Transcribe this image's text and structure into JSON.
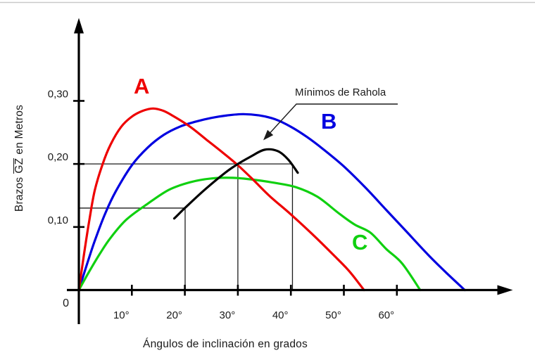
{
  "figure": {
    "background_color": "#ffffff",
    "top_border_color": "#c9c9c9",
    "axis_color": "#000000",
    "text_color": "#1a1a1a",
    "reference_line_color": "#1c1c1c"
  },
  "chart_data": {
    "type": "line",
    "title": "",
    "xlabel": "Ángulos de inclinación en grados",
    "ylabel": "Brazos GZ en Metros",
    "ylabel_parts": {
      "prefix": "Brazos",
      "overlined": "GZ",
      "suffix": "en Metros"
    },
    "x_unit": "degrees",
    "y_unit": "meters",
    "xlim": [
      0,
      82
    ],
    "ylim": [
      0,
      0.43
    ],
    "grid": false,
    "origin_label": "0",
    "x_ticks": [
      {
        "v": 10,
        "label": "10°"
      },
      {
        "v": 20,
        "label": "20°"
      },
      {
        "v": 30,
        "label": "30°"
      },
      {
        "v": 40,
        "label": "40°"
      },
      {
        "v": 50,
        "label": "50°"
      },
      {
        "v": 60,
        "label": "60°"
      }
    ],
    "y_ticks": [
      {
        "v": 0.1,
        "label": "0,10"
      },
      {
        "v": 0.2,
        "label": "0,20"
      },
      {
        "v": 0.3,
        "label": "0,30"
      }
    ],
    "series": [
      {
        "name": "A",
        "color": "#ee0000",
        "points": [
          [
            0,
            0
          ],
          [
            1,
            0.058
          ],
          [
            2,
            0.112
          ],
          [
            3,
            0.158
          ],
          [
            4.5,
            0.2
          ],
          [
            6,
            0.231
          ],
          [
            8,
            0.259
          ],
          [
            10,
            0.275
          ],
          [
            12,
            0.284
          ],
          [
            14,
            0.288
          ],
          [
            16,
            0.284
          ],
          [
            18,
            0.275
          ],
          [
            21,
            0.259
          ],
          [
            24,
            0.239
          ],
          [
            27,
            0.219
          ],
          [
            30,
            0.198
          ],
          [
            33,
            0.174
          ],
          [
            36,
            0.149
          ],
          [
            40,
            0.12
          ],
          [
            44,
            0.089
          ],
          [
            48,
            0.056
          ],
          [
            51,
            0.03
          ],
          [
            53.8,
            0
          ]
        ]
      },
      {
        "name": "B",
        "color": "#0000e0",
        "points": [
          [
            0,
            0
          ],
          [
            1.5,
            0.04
          ],
          [
            3,
            0.078
          ],
          [
            5,
            0.122
          ],
          [
            7,
            0.157
          ],
          [
            10,
            0.198
          ],
          [
            13,
            0.226
          ],
          [
            16,
            0.246
          ],
          [
            19,
            0.259
          ],
          [
            22,
            0.267
          ],
          [
            25,
            0.273
          ],
          [
            28,
            0.277
          ],
          [
            31,
            0.279
          ],
          [
            34,
            0.277
          ],
          [
            37,
            0.271
          ],
          [
            40,
            0.259
          ],
          [
            43,
            0.243
          ],
          [
            46,
            0.224
          ],
          [
            50,
            0.196
          ],
          [
            54,
            0.163
          ],
          [
            58,
            0.127
          ],
          [
            62,
            0.091
          ],
          [
            66,
            0.055
          ],
          [
            69.5,
            0.026
          ],
          [
            72.8,
            0
          ]
        ]
      },
      {
        "name": "C",
        "color": "#10d010",
        "points": [
          [
            0,
            0
          ],
          [
            2,
            0.03
          ],
          [
            4,
            0.058
          ],
          [
            6,
            0.083
          ],
          [
            9,
            0.112
          ],
          [
            13,
            0.137
          ],
          [
            17,
            0.159
          ],
          [
            21,
            0.171
          ],
          [
            25,
            0.177
          ],
          [
            29,
            0.178
          ],
          [
            33,
            0.175
          ],
          [
            37,
            0.17
          ],
          [
            41,
            0.163
          ],
          [
            45,
            0.148
          ],
          [
            49,
            0.122
          ],
          [
            52,
            0.104
          ],
          [
            55,
            0.091
          ],
          [
            58,
            0.065
          ],
          [
            61,
            0.042
          ],
          [
            64.4,
            0
          ]
        ]
      },
      {
        "name": "Mínimos de Rahola",
        "color": "#000000",
        "points": [
          [
            18,
            0.1135
          ],
          [
            20,
            0.13
          ],
          [
            23.6,
            0.158
          ],
          [
            27.6,
            0.186
          ],
          [
            30,
            0.2
          ],
          [
            32.5,
            0.212
          ],
          [
            35,
            0.2225
          ],
          [
            37.5,
            0.2205
          ],
          [
            39.5,
            0.207
          ],
          [
            41.3,
            0.186
          ]
        ]
      }
    ],
    "reference_lines": [
      {
        "kind": "horizontal",
        "gz": 0.2,
        "deg_from": 0,
        "deg_to": 40.3
      },
      {
        "kind": "horizontal",
        "gz": 0.13,
        "deg_from": 0,
        "deg_to": 20.05
      },
      {
        "kind": "vertical",
        "deg": 20.05,
        "gz_from": 0,
        "gz_to": 0.13
      },
      {
        "kind": "vertical",
        "deg": 30,
        "gz_from": 0,
        "gz_to": 0.2
      },
      {
        "kind": "vertical",
        "deg": 40.3,
        "gz_from": 0,
        "gz_to": 0.2
      }
    ],
    "annotation": {
      "text": "Mínimos de Rahola",
      "points_to": "black minimum curve near its peak (≈35°, ≈0.22 m)"
    }
  }
}
